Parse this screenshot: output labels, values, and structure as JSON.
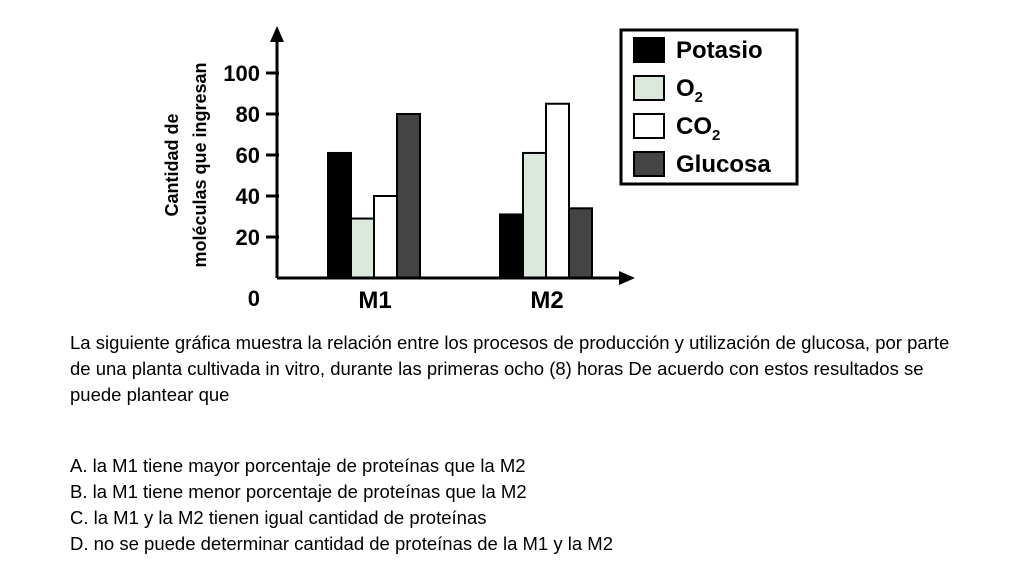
{
  "chart_data": {
    "type": "bar",
    "categories": [
      "M1",
      "M2"
    ],
    "series": [
      {
        "name": "Potasio",
        "values": [
          61,
          31
        ],
        "color": "#000000"
      },
      {
        "name": "O2",
        "values": [
          29,
          61
        ],
        "color": "#dde8dd"
      },
      {
        "name": "CO2",
        "values": [
          40,
          85
        ],
        "color": "#ffffff"
      },
      {
        "name": "Glucosa",
        "values": [
          80,
          34
        ],
        "color": "#444444"
      }
    ],
    "legend": [
      {
        "main": "Potasio",
        "sub": ""
      },
      {
        "main": "O",
        "sub": "2"
      },
      {
        "main": "CO",
        "sub": "2"
      },
      {
        "main": "Glucosa",
        "sub": ""
      }
    ],
    "ylabel_line1": "Cantidad de",
    "ylabel_line2": "moléculas que ingresan",
    "yticks": [
      "0",
      "20",
      "40",
      "60",
      "80",
      "100"
    ],
    "ylim": [
      0,
      100
    ],
    "legend_position": "top-right",
    "grid": false
  },
  "text": {
    "question": "La siguiente gráfica muestra la relación entre los procesos de producción y utilización de glucosa, por parte de una planta cultivada in vitro, durante las primeras ocho (8) horas De acuerdo con estos resultados se puede plantear que",
    "options": [
      "A. la M1 tiene mayor porcentaje de proteínas que la M2",
      "B. la M1 tiene menor porcentaje de proteínas que la M2",
      "C. la M1 y la M2 tienen igual cantidad de proteínas",
      "D. no se puede determinar cantidad de proteínas de la M1 y la M2"
    ]
  }
}
